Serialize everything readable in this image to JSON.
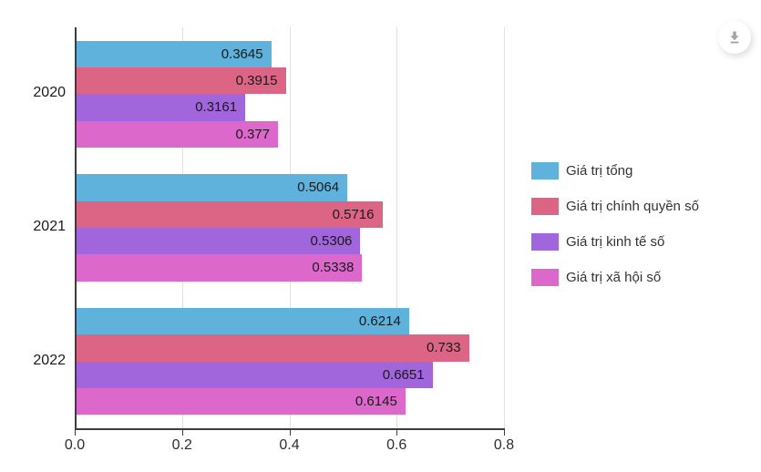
{
  "icons": {
    "download": "download-icon"
  },
  "colors": {
    "background": "#ffffff",
    "grid": "#e0e0e0",
    "axis": "#3d3d3d",
    "bar_label_text": "#1a1a1a",
    "legend_text": "#333333",
    "download_icon": "#a3a3a3"
  },
  "chart_data": {
    "type": "bar",
    "orientation": "horizontal",
    "title": "",
    "xlabel": "",
    "ylabel": "",
    "categories": [
      "2020",
      "2021",
      "2022"
    ],
    "series": [
      {
        "name": "Giá trị tổng",
        "color": "#5fb2dc",
        "values": [
          0.3645,
          0.5064,
          0.6214
        ]
      },
      {
        "name": "Giá trị chính quyền số",
        "color": "#dc6586",
        "values": [
          0.3915,
          0.5716,
          0.733
        ]
      },
      {
        "name": "Giá trị kinh tế số",
        "color": "#a165dc",
        "values": [
          0.3161,
          0.5306,
          0.6651
        ]
      },
      {
        "name": "Giá trị xã hội số",
        "color": "#dc68cc",
        "values": [
          0.377,
          0.5338,
          0.6145
        ]
      }
    ],
    "xlim": [
      0,
      0.8
    ],
    "x_ticks": [
      "0.0",
      "0.2",
      "0.4",
      "0.6",
      "0.8"
    ],
    "grid": true,
    "value_labels": true,
    "legend_position": "right"
  }
}
